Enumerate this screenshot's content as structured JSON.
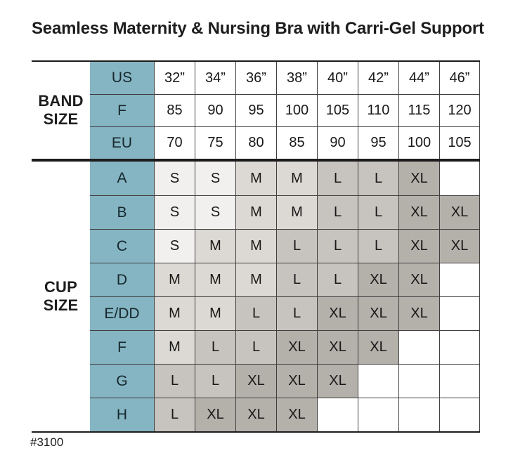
{
  "chart_data": {
    "type": "table",
    "title": "Seamless Maternity & Nursing Bra with Carri-Gel Support",
    "style_number": "#3100",
    "band": {
      "label": "BAND\nSIZE",
      "rows": [
        {
          "key": "US",
          "cells": [
            "32”",
            "34”",
            "36”",
            "38”",
            "40”",
            "42”",
            "44”",
            "46”"
          ]
        },
        {
          "key": "F",
          "cells": [
            "85",
            "90",
            "95",
            "100",
            "105",
            "110",
            "115",
            "120"
          ]
        },
        {
          "key": "EU",
          "cells": [
            "70",
            "75",
            "80",
            "85",
            "90",
            "95",
            "100",
            "105"
          ]
        }
      ]
    },
    "cup": {
      "label": "CUP\nSIZE",
      "rows": [
        {
          "key": "A",
          "cells": [
            "S",
            "S",
            "M",
            "M",
            "L",
            "L",
            "XL",
            ""
          ]
        },
        {
          "key": "B",
          "cells": [
            "S",
            "S",
            "M",
            "M",
            "L",
            "L",
            "XL",
            "XL"
          ]
        },
        {
          "key": "C",
          "cells": [
            "S",
            "M",
            "M",
            "L",
            "L",
            "L",
            "XL",
            "XL"
          ]
        },
        {
          "key": "D",
          "cells": [
            "M",
            "M",
            "M",
            "L",
            "L",
            "XL",
            "XL",
            ""
          ]
        },
        {
          "key": "E/DD",
          "cells": [
            "M",
            "M",
            "L",
            "L",
            "XL",
            "XL",
            "XL",
            ""
          ]
        },
        {
          "key": "F",
          "cells": [
            "M",
            "L",
            "L",
            "XL",
            "XL",
            "XL",
            "",
            ""
          ]
        },
        {
          "key": "G",
          "cells": [
            "L",
            "L",
            "XL",
            "XL",
            "XL",
            "",
            "",
            ""
          ]
        },
        {
          "key": "H",
          "cells": [
            "L",
            "XL",
            "XL",
            "XL",
            "",
            "",
            "",
            ""
          ]
        }
      ]
    },
    "size_legend_values": [
      "S",
      "M",
      "L",
      "XL"
    ]
  },
  "colors": {
    "header-bg": "#85b4c2",
    "cell-s": "#f1f0ee",
    "cell-m": "#dcd9d4",
    "cell-l": "#c7c4bf",
    "cell-xl": "#b4b0aa",
    "grid-line": "#3f3f3f",
    "heavy-line": "#1c1c1c"
  }
}
